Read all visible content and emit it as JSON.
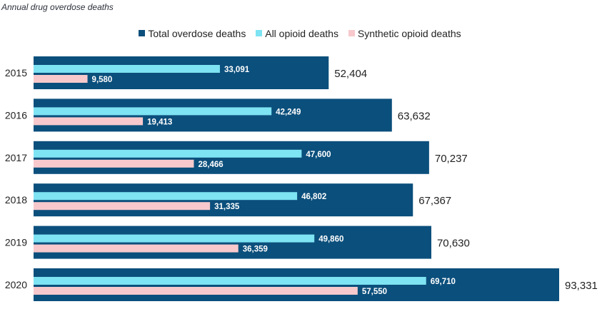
{
  "chart_data": {
    "type": "bar",
    "orientation": "horizontal",
    "title": "Annual drug overdose deaths",
    "categories": [
      "2015",
      "2016",
      "2017",
      "2018",
      "2019",
      "2020"
    ],
    "series": [
      {
        "name": "Total overdose deaths",
        "color": "#0b4f7c",
        "values": [
          52404,
          63632,
          70237,
          67367,
          70630,
          93331
        ],
        "labels": [
          "52,404",
          "63,632",
          "70,237",
          "67,367",
          "70,630",
          "93,331"
        ]
      },
      {
        "name": "All opioid deaths",
        "color": "#7ee3f2",
        "values": [
          33091,
          42249,
          47600,
          46802,
          49860,
          69710
        ],
        "labels": [
          "33,091",
          "42,249",
          "47,600",
          "46,802",
          "49,860",
          "69,710"
        ]
      },
      {
        "name": "Synthetic opioid deaths",
        "color": "#f7c9cc",
        "values": [
          9580,
          19413,
          28466,
          31335,
          36359,
          57550
        ],
        "labels": [
          "9,580",
          "19,413",
          "28,466",
          "31,335",
          "36,359",
          "57,550"
        ]
      }
    ],
    "legend_position": "top",
    "grid": false
  }
}
